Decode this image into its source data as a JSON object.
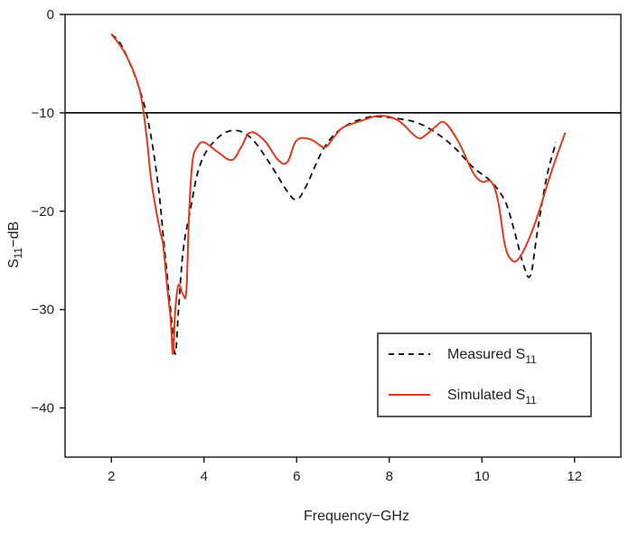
{
  "chart_data": {
    "type": "line",
    "title": "",
    "xlabel": "Frequency−GHz",
    "ylabel_main": "S",
    "ylabel_sub": "11",
    "ylabel_suffix": "−dB",
    "xlim": [
      1,
      13
    ],
    "ylim": [
      -45,
      0
    ],
    "x_ticks": [
      2,
      4,
      6,
      8,
      10,
      12
    ],
    "x_tick_labels": [
      "2",
      "4",
      "6",
      "8",
      "10",
      "12"
    ],
    "y_ticks": [
      0,
      -10,
      -20,
      -30,
      -40
    ],
    "y_tick_labels": [
      "0",
      "−10",
      "−20",
      "−30",
      "−40"
    ],
    "reference_line_y": -10,
    "legend_position": "lower-right",
    "series": [
      {
        "name_main": "Measured S",
        "name_sub": "11",
        "color": "#111111",
        "style": "dashed",
        "x": [
          2.0,
          2.2,
          2.4,
          2.6,
          2.8,
          3.0,
          3.15,
          3.3,
          3.38,
          3.45,
          3.55,
          3.7,
          3.9,
          4.2,
          4.6,
          5.0,
          5.4,
          5.8,
          6.0,
          6.2,
          6.6,
          7.0,
          7.5,
          7.8,
          8.2,
          8.6,
          9.0,
          9.4,
          9.8,
          10.2,
          10.5,
          10.7,
          10.9,
          11.05,
          11.2,
          11.4,
          11.6
        ],
        "y": [
          -2.0,
          -3.0,
          -5.0,
          -7.5,
          -11.0,
          -17.0,
          -24.0,
          -31.0,
          -34.5,
          -30.0,
          -24.0,
          -20.0,
          -15.5,
          -13.0,
          -11.8,
          -12.5,
          -15.0,
          -18.0,
          -18.8,
          -17.5,
          -13.5,
          -11.5,
          -10.5,
          -10.4,
          -10.6,
          -11.0,
          -12.0,
          -13.5,
          -15.5,
          -17.0,
          -19.0,
          -22.0,
          -25.5,
          -26.5,
          -22.0,
          -16.5,
          -13.0
        ]
      },
      {
        "name_main": "Simulated S",
        "name_sub": "11",
        "color": "#e03a1e",
        "style": "solid",
        "x": [
          2.0,
          2.3,
          2.6,
          2.75,
          2.85,
          2.95,
          3.05,
          3.12,
          3.2,
          3.28,
          3.33,
          3.38,
          3.45,
          3.55,
          3.62,
          3.68,
          3.75,
          3.85,
          4.0,
          4.3,
          4.6,
          4.8,
          5.0,
          5.3,
          5.6,
          5.8,
          6.0,
          6.3,
          6.6,
          6.8,
          7.0,
          7.4,
          7.8,
          8.2,
          8.6,
          8.8,
          9.0,
          9.2,
          9.5,
          9.8,
          10.0,
          10.2,
          10.35,
          10.5,
          10.65,
          10.8,
          11.0,
          11.2,
          11.5,
          11.8
        ],
        "y": [
          -2.0,
          -4.0,
          -7.5,
          -12.0,
          -16.5,
          -19.5,
          -22.0,
          -23.5,
          -27.5,
          -31.0,
          -34.5,
          -30.0,
          -27.5,
          -28.5,
          -28.0,
          -20.0,
          -15.0,
          -13.5,
          -13.0,
          -14.0,
          -14.8,
          -13.5,
          -12.0,
          -12.8,
          -14.8,
          -15.0,
          -12.8,
          -12.7,
          -13.5,
          -12.5,
          -11.5,
          -10.8,
          -10.3,
          -10.8,
          -12.5,
          -12.2,
          -11.4,
          -11.0,
          -13.0,
          -16.0,
          -17.0,
          -17.0,
          -19.0,
          -23.5,
          -25.0,
          -24.8,
          -23.0,
          -20.5,
          -16.0,
          -12.0
        ]
      }
    ]
  }
}
